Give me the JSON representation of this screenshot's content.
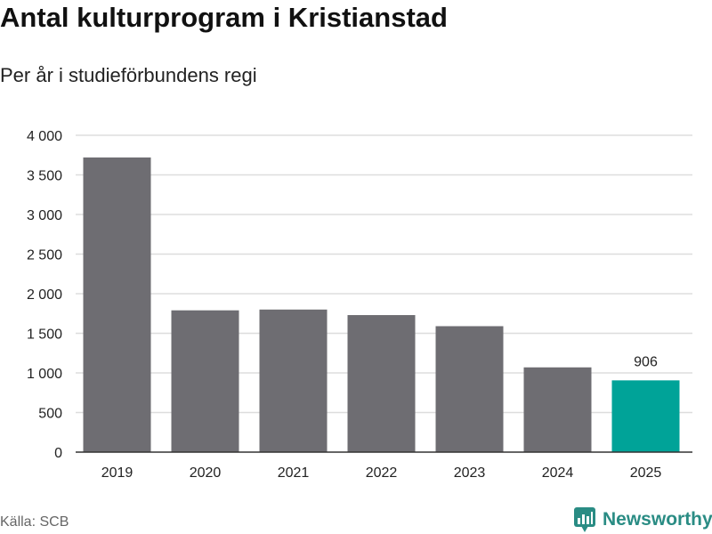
{
  "chart_data": {
    "type": "bar",
    "title": "Antal kulturprogram i Kristianstad",
    "subtitle": "Per år i studieförbundens regi",
    "categories": [
      "2019",
      "2020",
      "2021",
      "2022",
      "2023",
      "2024",
      "2025"
    ],
    "values": [
      3720,
      1790,
      1800,
      1730,
      1590,
      1070,
      906
    ],
    "highlight_index": 6,
    "data_labels": [
      {
        "index": 6,
        "text": "906"
      }
    ],
    "ylim": [
      0,
      4000
    ],
    "yticks": [
      0,
      500,
      1000,
      1500,
      2000,
      2500,
      3000,
      3500,
      4000
    ],
    "ytick_labels": [
      "0",
      "500",
      "1 000",
      "1 500",
      "2 000",
      "2 500",
      "3 000",
      "3 500",
      "4 000"
    ],
    "xlabel": "",
    "ylabel": "",
    "grid": true,
    "colors": {
      "bar": "#6e6d72",
      "highlight": "#00a398",
      "grid": "#dddddd",
      "axis": "#333333"
    }
  },
  "footer": {
    "source": "Källa: SCB",
    "brand": "Newsworthy"
  },
  "brand_color": "#2a8c84",
  "logo_icon": "bar-chart-speech-bubble-icon"
}
